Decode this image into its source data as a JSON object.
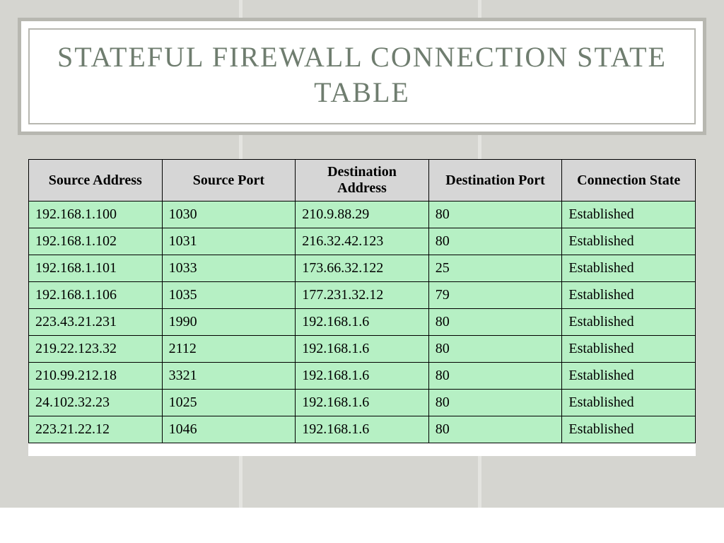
{
  "title": "STATEFUL FIREWALL CONNECTION STATE TABLE",
  "colors": {
    "page_bg": "#d5d5d0",
    "frame_border": "#b7b7b0",
    "title_color": "#6f7d6f",
    "header_bg": "#d6d6d6",
    "row_bg": "#b6f0c4",
    "cell_border": "#000000",
    "white": "#ffffff"
  },
  "table": {
    "columns": [
      "Source Address",
      "Source Port",
      "Destination Address",
      "Destination Port",
      "Connection State"
    ],
    "rows": [
      [
        "192.168.1.100",
        "1030",
        "210.9.88.29",
        "80",
        "Established"
      ],
      [
        "192.168.1.102",
        "1031",
        "216.32.42.123",
        "80",
        "Established"
      ],
      [
        "192.168.1.101",
        "1033",
        "173.66.32.122",
        "25",
        "Established"
      ],
      [
        "192.168.1.106",
        "1035",
        "177.231.32.12",
        "79",
        "Established"
      ],
      [
        "223.43.21.231",
        "1990",
        "192.168.1.6",
        "80",
        "Established"
      ],
      [
        "219.22.123.32",
        "2112",
        "192.168.1.6",
        "80",
        "Established"
      ],
      [
        "210.99.212.18",
        "3321",
        "192.168.1.6",
        "80",
        "Established"
      ],
      [
        "24.102.32.23",
        "1025",
        "192.168.1.6",
        "80",
        "Established"
      ],
      [
        "223.21.22.12",
        "1046",
        "192.168.1.6",
        "80",
        "Established"
      ]
    ]
  }
}
